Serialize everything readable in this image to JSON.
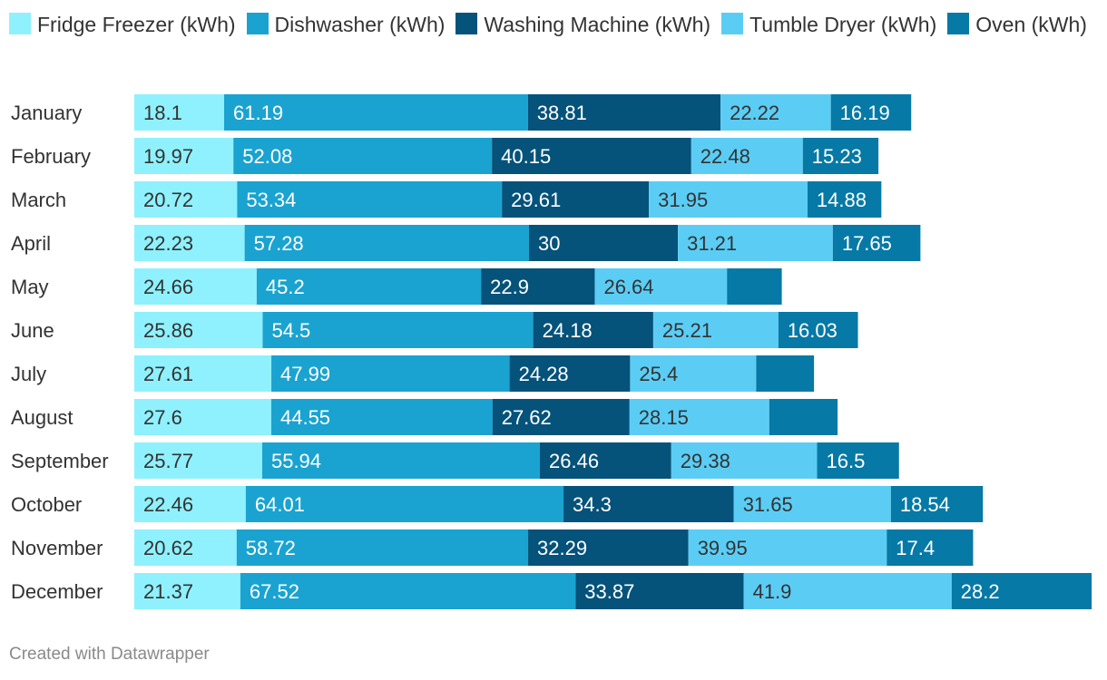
{
  "chart_data": {
    "type": "bar",
    "orientation": "horizontal",
    "stacked": true,
    "title": "",
    "xlabel": "",
    "ylabel": "",
    "categories": [
      "January",
      "February",
      "March",
      "April",
      "May",
      "June",
      "July",
      "August",
      "September",
      "October",
      "November",
      "December"
    ],
    "series": [
      {
        "name": "Fridge Freezer (kWh)",
        "color": "#8ff1fd",
        "label_color": "#333333",
        "values": [
          18.1,
          19.97,
          20.72,
          22.23,
          24.66,
          25.86,
          27.61,
          27.6,
          25.77,
          22.46,
          20.62,
          21.37
        ]
      },
      {
        "name": "Dishwasher (kWh)",
        "color": "#1aa3d0",
        "label_color": "#ffffff",
        "values": [
          61.19,
          52.08,
          53.34,
          57.28,
          45.2,
          54.5,
          47.99,
          44.55,
          55.94,
          64.01,
          58.72,
          67.52
        ]
      },
      {
        "name": "Washing Machine (kWh)",
        "color": "#05527a",
        "label_color": "#ffffff",
        "values": [
          38.81,
          40.15,
          29.61,
          30,
          22.9,
          24.18,
          24.28,
          27.62,
          26.46,
          34.3,
          32.29,
          33.87
        ]
      },
      {
        "name": "Tumble Dryer (kWh)",
        "color": "#5bcdf5",
        "label_color": "#333333",
        "values": [
          22.22,
          22.48,
          31.95,
          31.21,
          26.64,
          25.21,
          25.4,
          28.15,
          29.38,
          31.65,
          39.95,
          41.9
        ]
      },
      {
        "name": "Oven (kWh)",
        "color": "#0679a6",
        "label_color": "#ffffff",
        "values": [
          16.19,
          15.23,
          14.88,
          17.65,
          11.04,
          16.03,
          11.65,
          13.76,
          16.5,
          18.54,
          17.4,
          28.2
        ],
        "value_labels": [
          "16.19",
          "15.23",
          "14.88",
          "17.65",
          "",
          "16.03",
          "",
          "",
          "16.5",
          "18.54",
          "17.4",
          "28.2"
        ]
      }
    ],
    "xlim": [
      0,
      193.76
    ],
    "grid": false,
    "legend": "top",
    "source_note": "Created with Datawrapper"
  }
}
